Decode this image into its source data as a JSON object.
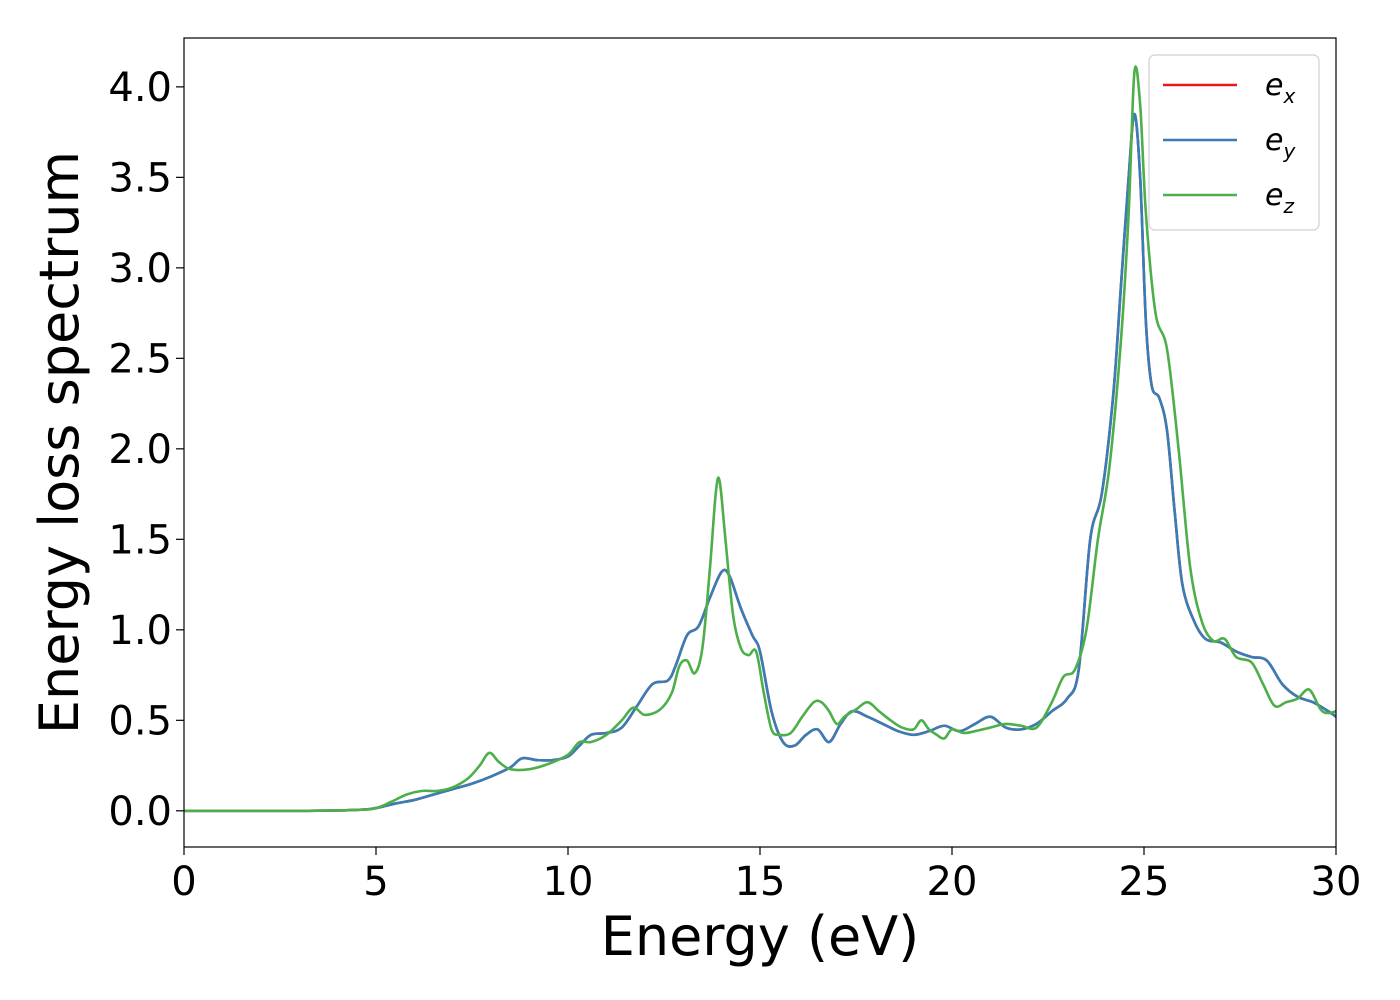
{
  "chart_data": {
    "type": "line",
    "title": "",
    "xlabel": "Energy (eV)",
    "ylabel": "Energy loss spectrum",
    "xlim": [
      0,
      30
    ],
    "ylim": [
      -0.2,
      4.27
    ],
    "xticks": [
      0,
      5,
      10,
      15,
      20,
      25,
      30
    ],
    "xtick_labels": [
      "0",
      "5",
      "10",
      "15",
      "20",
      "25",
      "30"
    ],
    "yticks": [
      0.0,
      0.5,
      1.0,
      1.5,
      2.0,
      2.5,
      3.0,
      3.5,
      4.0
    ],
    "ytick_labels": [
      "0.0",
      "0.5",
      "1.0",
      "1.5",
      "2.0",
      "2.5",
      "3.0",
      "3.5",
      "4.0"
    ],
    "grid": false,
    "legend_position": "top-right",
    "series": [
      {
        "name": "e_x",
        "label_base": "e",
        "label_sub": "x",
        "color": "#e41a1c",
        "x": [
          0,
          3,
          4.5,
          5.0,
          5.5,
          6.0,
          6.5,
          7.0,
          7.5,
          8.0,
          8.5,
          8.8,
          9.2,
          9.6,
          10.0,
          10.3,
          10.6,
          11.0,
          11.4,
          11.8,
          12.2,
          12.6,
          12.8,
          13.1,
          13.4,
          13.7,
          14.0,
          14.2,
          14.5,
          14.8,
          15.0,
          15.3,
          15.6,
          15.9,
          16.2,
          16.5,
          16.8,
          17.1,
          17.4,
          17.8,
          18.2,
          18.6,
          19.0,
          19.4,
          19.8,
          20.2,
          20.6,
          21.0,
          21.4,
          21.8,
          22.2,
          22.6,
          23.0,
          23.3,
          23.6,
          23.9,
          24.2,
          24.4,
          24.6,
          24.75,
          24.9,
          25.05,
          25.2,
          25.4,
          25.6,
          25.8,
          26.0,
          26.3,
          26.6,
          27.0,
          27.4,
          27.8,
          28.2,
          28.6,
          29.0,
          29.4,
          29.8,
          30.0
        ],
        "y": [
          0.0,
          0.0,
          0.005,
          0.015,
          0.04,
          0.06,
          0.09,
          0.12,
          0.15,
          0.19,
          0.24,
          0.29,
          0.28,
          0.28,
          0.3,
          0.36,
          0.42,
          0.43,
          0.46,
          0.58,
          0.7,
          0.72,
          0.8,
          0.97,
          1.02,
          1.18,
          1.32,
          1.3,
          1.12,
          0.97,
          0.88,
          0.55,
          0.38,
          0.36,
          0.42,
          0.45,
          0.38,
          0.48,
          0.55,
          0.52,
          0.48,
          0.44,
          0.42,
          0.44,
          0.47,
          0.44,
          0.48,
          0.52,
          0.46,
          0.45,
          0.48,
          0.55,
          0.62,
          0.78,
          1.5,
          1.75,
          2.3,
          2.9,
          3.5,
          3.85,
          3.5,
          2.7,
          2.35,
          2.28,
          2.1,
          1.65,
          1.25,
          1.05,
          0.95,
          0.93,
          0.88,
          0.85,
          0.83,
          0.7,
          0.63,
          0.6,
          0.55,
          0.52
        ]
      },
      {
        "name": "e_y",
        "label_base": "e",
        "label_sub": "y",
        "color": "#377eb8",
        "x": [
          0,
          3,
          4.5,
          5.0,
          5.5,
          6.0,
          6.5,
          7.0,
          7.5,
          8.0,
          8.5,
          8.8,
          9.2,
          9.6,
          10.0,
          10.3,
          10.6,
          11.0,
          11.4,
          11.8,
          12.2,
          12.6,
          12.8,
          13.1,
          13.4,
          13.7,
          14.0,
          14.2,
          14.5,
          14.8,
          15.0,
          15.3,
          15.6,
          15.9,
          16.2,
          16.5,
          16.8,
          17.1,
          17.4,
          17.8,
          18.2,
          18.6,
          19.0,
          19.4,
          19.8,
          20.2,
          20.6,
          21.0,
          21.4,
          21.8,
          22.2,
          22.6,
          23.0,
          23.3,
          23.6,
          23.9,
          24.2,
          24.4,
          24.6,
          24.75,
          24.9,
          25.05,
          25.2,
          25.4,
          25.6,
          25.8,
          26.0,
          26.3,
          26.6,
          27.0,
          27.4,
          27.8,
          28.2,
          28.6,
          29.0,
          29.4,
          29.8,
          30.0
        ],
        "y": [
          0.0,
          0.0,
          0.005,
          0.015,
          0.04,
          0.06,
          0.09,
          0.12,
          0.15,
          0.19,
          0.24,
          0.29,
          0.28,
          0.28,
          0.3,
          0.36,
          0.42,
          0.43,
          0.46,
          0.58,
          0.7,
          0.72,
          0.8,
          0.97,
          1.02,
          1.18,
          1.32,
          1.3,
          1.12,
          0.97,
          0.88,
          0.55,
          0.38,
          0.36,
          0.42,
          0.45,
          0.38,
          0.48,
          0.55,
          0.52,
          0.48,
          0.44,
          0.42,
          0.44,
          0.47,
          0.44,
          0.48,
          0.52,
          0.46,
          0.45,
          0.48,
          0.55,
          0.62,
          0.78,
          1.5,
          1.75,
          2.3,
          2.9,
          3.5,
          3.85,
          3.5,
          2.7,
          2.35,
          2.28,
          2.1,
          1.65,
          1.25,
          1.05,
          0.95,
          0.93,
          0.88,
          0.85,
          0.83,
          0.7,
          0.63,
          0.6,
          0.55,
          0.52
        ]
      },
      {
        "name": "e_z",
        "label_base": "e",
        "label_sub": "z",
        "color": "#4daf4a",
        "x": [
          0,
          3,
          4.5,
          5.0,
          5.4,
          5.8,
          6.2,
          6.6,
          7.0,
          7.4,
          7.7,
          7.95,
          8.2,
          8.5,
          9.0,
          9.5,
          10.0,
          10.3,
          10.6,
          11.0,
          11.4,
          11.7,
          12.0,
          12.4,
          12.7,
          12.9,
          13.1,
          13.3,
          13.5,
          13.7,
          13.85,
          13.95,
          14.1,
          14.3,
          14.5,
          14.7,
          14.9,
          15.1,
          15.3,
          15.5,
          15.8,
          16.1,
          16.4,
          16.6,
          16.8,
          17.0,
          17.2,
          17.5,
          17.8,
          18.1,
          18.4,
          18.7,
          19.0,
          19.2,
          19.4,
          19.6,
          19.8,
          20.0,
          20.3,
          20.6,
          21.0,
          21.4,
          21.8,
          22.2,
          22.6,
          22.9,
          23.2,
          23.5,
          23.8,
          24.1,
          24.4,
          24.6,
          24.75,
          24.9,
          25.05,
          25.3,
          25.6,
          25.9,
          26.2,
          26.5,
          26.8,
          27.1,
          27.4,
          27.8,
          28.1,
          28.4,
          28.7,
          29.0,
          29.3,
          29.6,
          29.8,
          30.0
        ],
        "y": [
          0.0,
          0.0,
          0.005,
          0.015,
          0.05,
          0.09,
          0.11,
          0.11,
          0.13,
          0.18,
          0.25,
          0.32,
          0.27,
          0.23,
          0.23,
          0.26,
          0.31,
          0.38,
          0.38,
          0.42,
          0.5,
          0.57,
          0.53,
          0.56,
          0.65,
          0.8,
          0.83,
          0.76,
          0.9,
          1.35,
          1.76,
          1.82,
          1.5,
          1.08,
          0.9,
          0.86,
          0.88,
          0.65,
          0.45,
          0.42,
          0.43,
          0.52,
          0.6,
          0.6,
          0.55,
          0.48,
          0.52,
          0.56,
          0.6,
          0.55,
          0.5,
          0.46,
          0.45,
          0.5,
          0.45,
          0.42,
          0.4,
          0.45,
          0.43,
          0.44,
          0.46,
          0.48,
          0.47,
          0.46,
          0.6,
          0.74,
          0.78,
          1.0,
          1.5,
          1.9,
          2.6,
          3.3,
          4.08,
          3.9,
          3.3,
          2.75,
          2.55,
          2.0,
          1.35,
          1.05,
          0.94,
          0.95,
          0.85,
          0.82,
          0.7,
          0.58,
          0.6,
          0.62,
          0.67,
          0.56,
          0.54,
          0.55
        ]
      }
    ]
  }
}
